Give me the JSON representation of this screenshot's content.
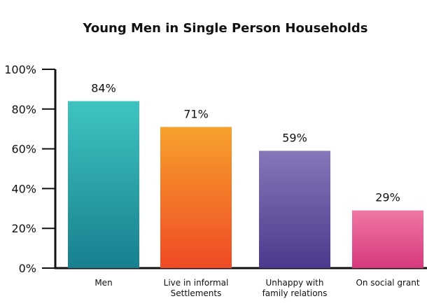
{
  "chart_data": {
    "type": "bar",
    "title": "Young Men in Single Person Households",
    "xlabel": "",
    "ylabel": "",
    "ylim": [
      0,
      100
    ],
    "yticks": [
      "0%",
      "20%",
      "40%",
      "60%",
      "80%",
      "100%"
    ],
    "grid": false,
    "legend": "none",
    "categories": [
      [
        "Men"
      ],
      [
        "Live in informal",
        "Settlements"
      ],
      [
        "Unhappy with",
        "family relations"
      ],
      [
        "On social grant"
      ]
    ],
    "values": [
      84,
      71,
      59,
      29
    ],
    "data_labels": [
      "84%",
      "71%",
      "59%",
      "29%"
    ],
    "bar_gradients": [
      [
        "#3fc4c1",
        "#17808f"
      ],
      [
        "#f7a12c",
        "#ef4a25"
      ],
      [
        "#8577b8",
        "#4b3a8d"
      ],
      [
        "#ef77a3",
        "#d6397e"
      ]
    ],
    "axis_color": "#111111"
  }
}
